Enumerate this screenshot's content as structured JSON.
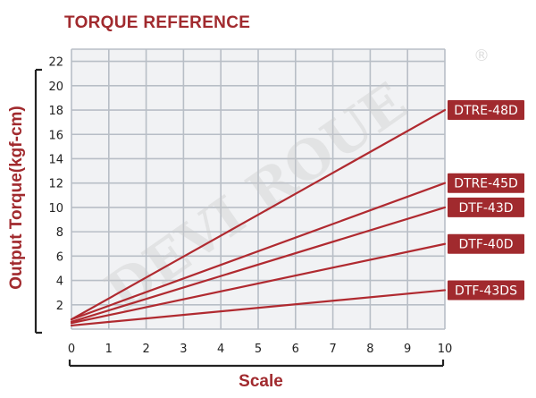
{
  "colors": {
    "accent": "#a12a2e",
    "line": "#b02a30",
    "grid": "#b8bec6",
    "plot_bg": "#f1f2f4",
    "frame": "#222222",
    "watermark": "#c9c9c9"
  },
  "watermark": {
    "text": "DEVI ROUE",
    "mark": "®"
  },
  "chart_data": {
    "type": "line",
    "title": "TORQUE REFERENCE",
    "xlabel": "Scale",
    "ylabel": "Output Torque(kgf-cm)",
    "xlim": [
      0,
      10
    ],
    "ylim": [
      0,
      23
    ],
    "x_ticks": [
      "0",
      "1",
      "2",
      "3",
      "4",
      "5",
      "6",
      "7",
      "8",
      "9",
      "10"
    ],
    "y_ticks": [
      "2",
      "4",
      "6",
      "8",
      "10",
      "12",
      "14",
      "16",
      "18",
      "20",
      "22"
    ],
    "grid": true,
    "legend": "inline-right",
    "series": [
      {
        "name": "DTRE-48D",
        "x": [
          0,
          10
        ],
        "y": [
          0.8,
          18
        ]
      },
      {
        "name": "DTRE-45D",
        "x": [
          0,
          10
        ],
        "y": [
          0.8,
          12
        ]
      },
      {
        "name": "DTF-43D",
        "x": [
          0,
          10
        ],
        "y": [
          0.6,
          10
        ]
      },
      {
        "name": "DTF-40D",
        "x": [
          0,
          10
        ],
        "y": [
          0.5,
          7
        ]
      },
      {
        "name": "DTF-43DS",
        "x": [
          0,
          10
        ],
        "y": [
          0.3,
          3.2
        ]
      }
    ]
  }
}
